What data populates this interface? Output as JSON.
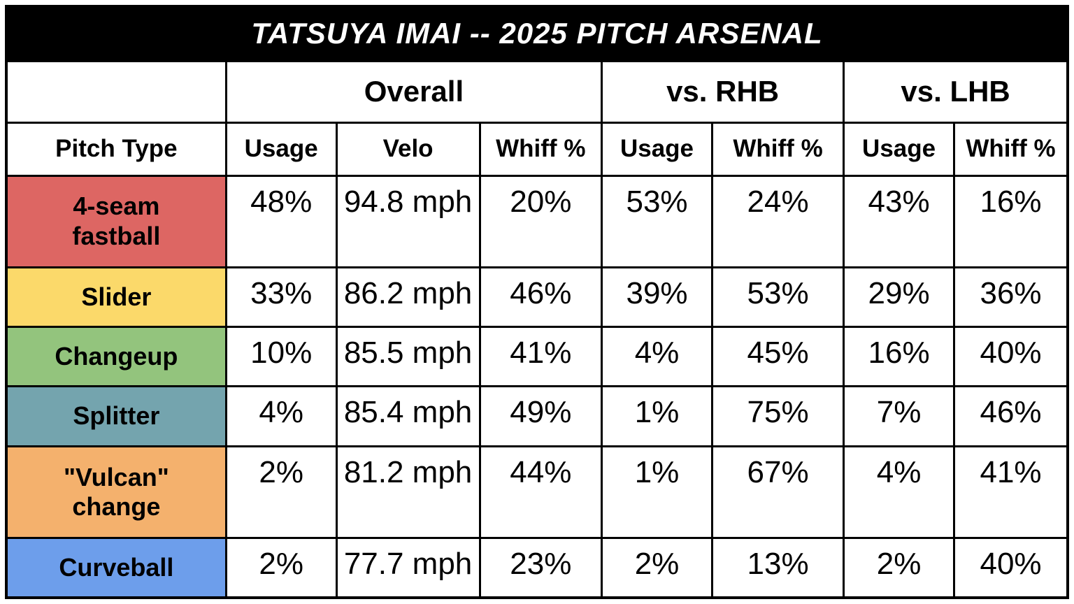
{
  "chart_data": {
    "type": "table",
    "title": "TATSUYA IMAI -- 2025 PITCH ARSENAL",
    "group_headers": [
      {
        "label": "",
        "span": 1
      },
      {
        "label": "Overall",
        "span": 3
      },
      {
        "label": "vs. RHB",
        "span": 2
      },
      {
        "label": "vs. LHB",
        "span": 2
      }
    ],
    "columns": [
      "Pitch Type",
      "Usage",
      "Velo",
      "Whiff %",
      "Usage",
      "Whiff %",
      "Usage",
      "Whiff %"
    ],
    "rows": [
      {
        "pitch": "4-seam fastball",
        "color": "#DD6663",
        "values": [
          "48%",
          "94.8 mph",
          "20%",
          "53%",
          "24%",
          "43%",
          "16%"
        ]
      },
      {
        "pitch": "Slider",
        "color": "#FBD96A",
        "values": [
          "33%",
          "86.2 mph",
          "46%",
          "39%",
          "53%",
          "29%",
          "36%"
        ]
      },
      {
        "pitch": "Changeup",
        "color": "#93C47D",
        "values": [
          "10%",
          "85.5 mph",
          "41%",
          "4%",
          "45%",
          "16%",
          "40%"
        ]
      },
      {
        "pitch": "Splitter",
        "color": "#74A4AE",
        "values": [
          "4%",
          "85.4 mph",
          "49%",
          "1%",
          "75%",
          "7%",
          "46%"
        ]
      },
      {
        "pitch": "\"Vulcan\" change",
        "color": "#F4B16D",
        "values": [
          "2%",
          "81.2 mph",
          "44%",
          "1%",
          "67%",
          "4%",
          "41%"
        ]
      },
      {
        "pitch": "Curveball",
        "color": "#6D9EEB",
        "values": [
          "2%",
          "77.7 mph",
          "23%",
          "2%",
          "13%",
          "2%",
          "40%"
        ]
      }
    ],
    "layout": {
      "title_bg": "#000000",
      "title_text_color": "#ffffff",
      "border_color": "#000000",
      "cell_bg": "#ffffff"
    }
  }
}
